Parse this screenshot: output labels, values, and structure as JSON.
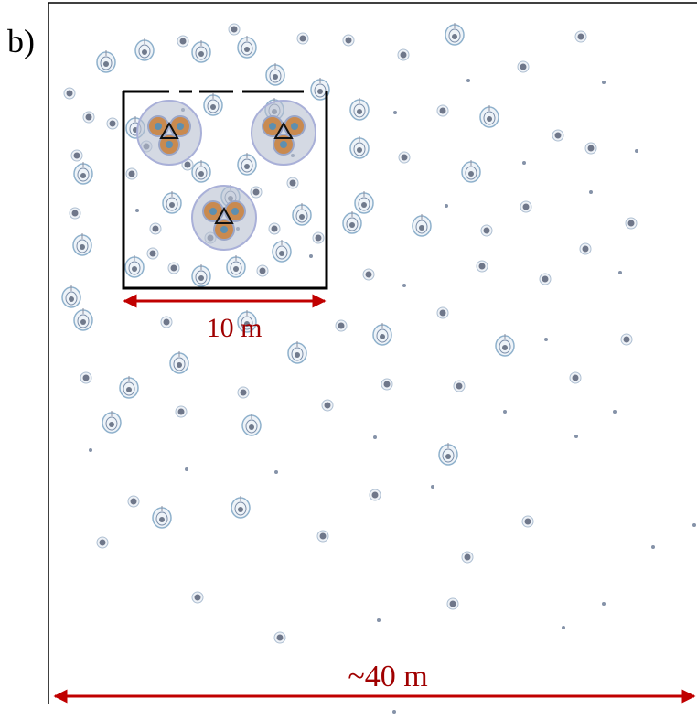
{
  "panel_label": "b)",
  "scale_small": "10 m",
  "scale_large": "~40 m"
}
